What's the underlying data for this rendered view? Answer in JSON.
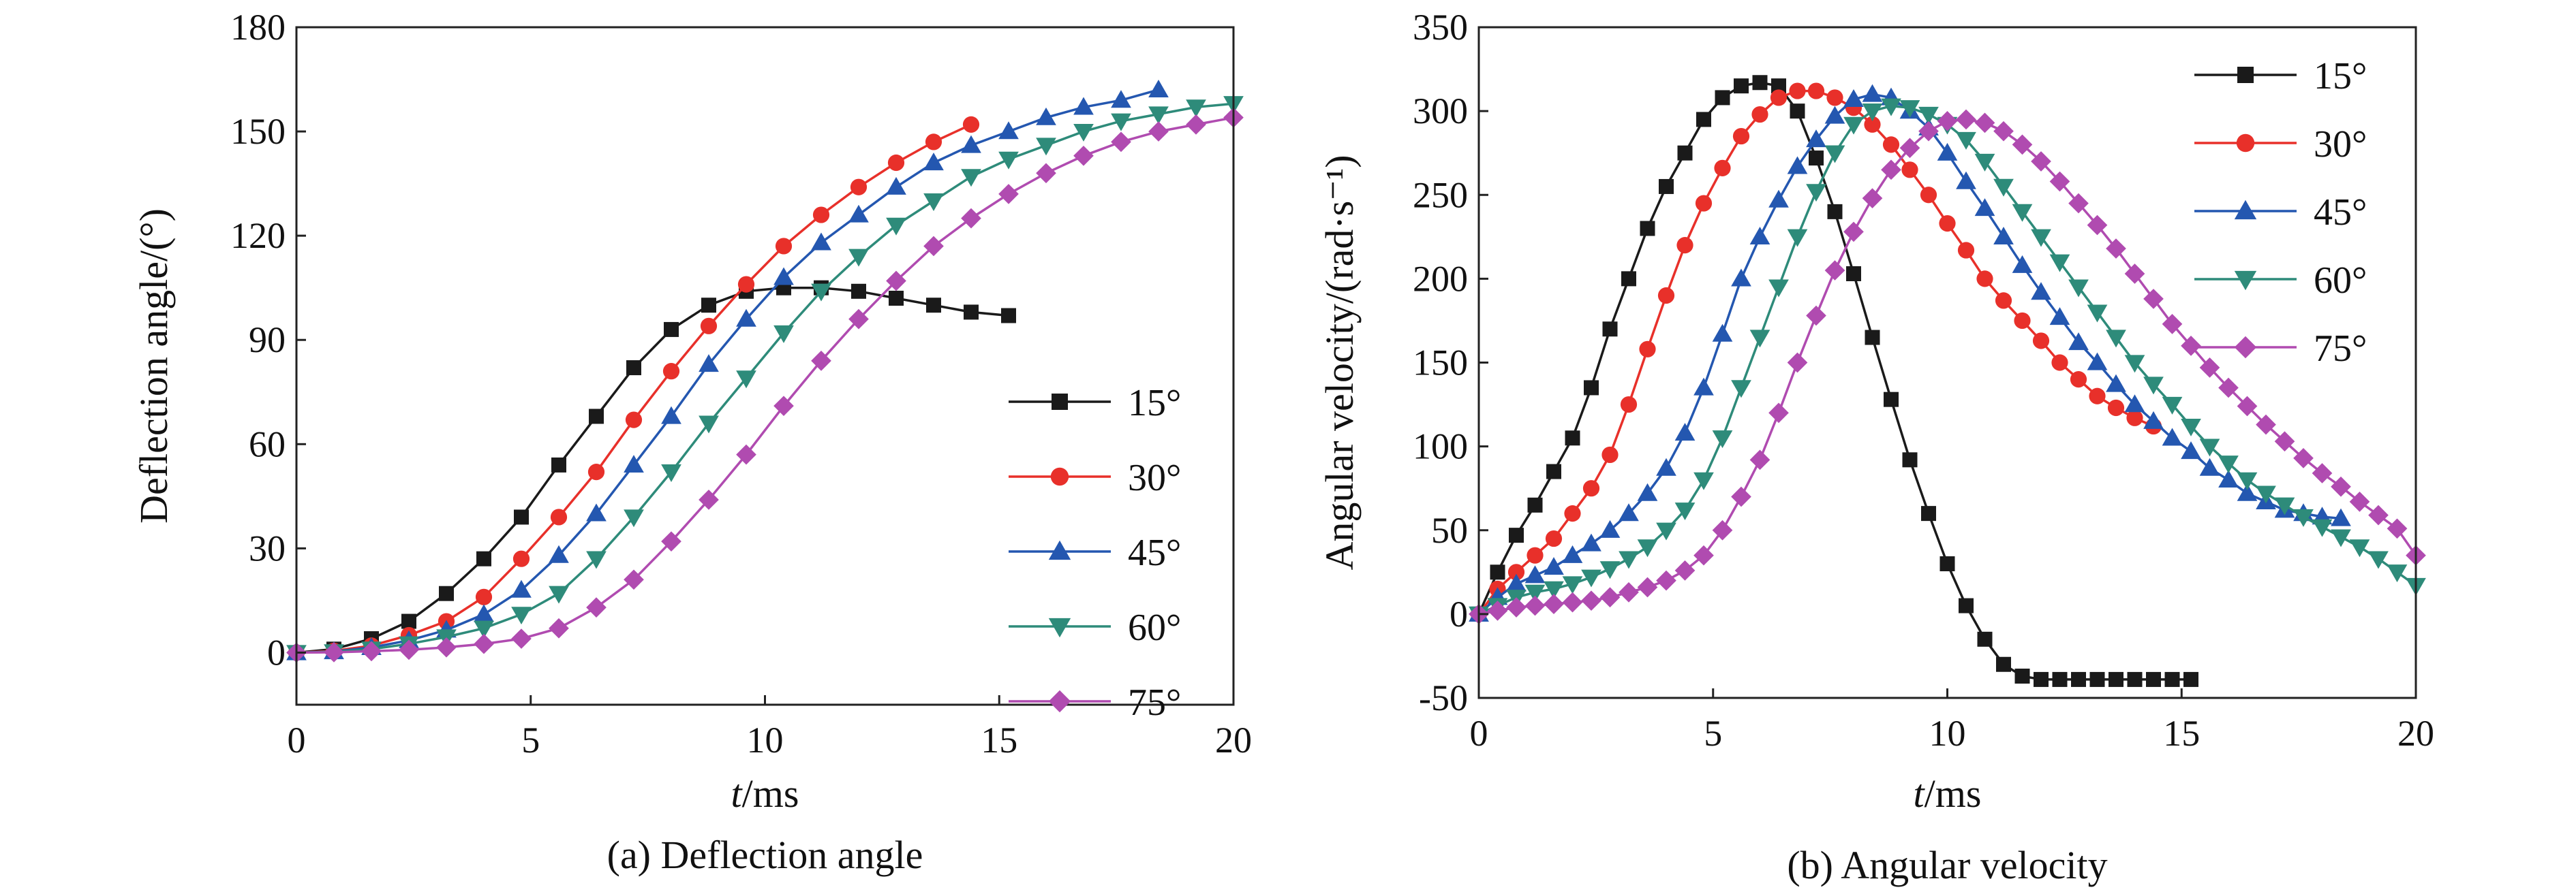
{
  "chart_data": [
    {
      "type": "line",
      "caption": "(a) Deflection angle",
      "ylabel": "Deflection angle/(°)",
      "xlabel_italic": "t",
      "xlabel_unit": "/ms",
      "xlim": [
        0,
        20
      ],
      "ylim": [
        -15,
        180
      ],
      "xticks": [
        0,
        5,
        10,
        15,
        20
      ],
      "yticks": [
        0,
        30,
        60,
        90,
        120,
        150,
        180
      ],
      "legend_position": "lower-right",
      "grid": false,
      "series": [
        {
          "name": "15°",
          "color": "#1a1a1a",
          "marker": "square",
          "x": [
            0,
            0.8,
            1.6,
            2.4,
            3.2,
            4.0,
            4.8,
            5.6,
            6.4,
            7.2,
            8.0,
            8.8,
            9.6,
            10.4,
            11.2,
            12.0,
            12.8,
            13.6,
            14.4,
            15.2
          ],
          "y": [
            0,
            1,
            4,
            9,
            17,
            27,
            39,
            54,
            68,
            82,
            93,
            100,
            104,
            105,
            105,
            104,
            102,
            100,
            98,
            97
          ]
        },
        {
          "name": "30°",
          "color": "#e8302a",
          "marker": "circle",
          "x": [
            0,
            0.8,
            1.6,
            2.4,
            3.2,
            4.0,
            4.8,
            5.6,
            6.4,
            7.2,
            8.0,
            8.8,
            9.6,
            10.4,
            11.2,
            12.0,
            12.8,
            13.6,
            14.4
          ],
          "y": [
            0,
            0.5,
            2,
            5,
            9,
            16,
            27,
            39,
            52,
            67,
            81,
            94,
            106,
            117,
            126,
            134,
            141,
            147,
            152
          ]
        },
        {
          "name": "45°",
          "color": "#2457b0",
          "marker": "triangle-up",
          "x": [
            0,
            0.8,
            1.6,
            2.4,
            3.2,
            4.0,
            4.8,
            5.6,
            6.4,
            7.2,
            8.0,
            8.8,
            9.6,
            10.4,
            11.2,
            12.0,
            12.8,
            13.6,
            14.4,
            15.2,
            16.0,
            16.8,
            17.6,
            18.4
          ],
          "y": [
            0,
            0.3,
            1.5,
            3.5,
            6.5,
            11,
            18,
            28,
            40,
            54,
            68,
            83,
            96,
            108,
            118,
            126,
            134,
            141,
            146,
            150,
            154,
            157,
            159,
            162
          ]
        },
        {
          "name": "60°",
          "color": "#2e8b7a",
          "marker": "triangle-down",
          "x": [
            0,
            0.8,
            1.6,
            2.4,
            3.2,
            4.0,
            4.8,
            5.6,
            6.4,
            7.2,
            8.0,
            8.8,
            9.6,
            10.4,
            11.2,
            12.0,
            12.8,
            13.6,
            14.4,
            15.2,
            16.0,
            16.8,
            17.6,
            18.4,
            19.2,
            20.0
          ],
          "y": [
            0,
            0.2,
            1,
            2.5,
            4.5,
            7,
            11,
            17,
            27,
            39,
            52,
            66,
            79,
            92,
            104,
            114,
            123,
            130,
            137,
            142,
            146,
            150,
            153,
            155,
            157,
            158
          ]
        },
        {
          "name": "75°",
          "color": "#b04bb0",
          "marker": "diamond",
          "x": [
            0,
            0.8,
            1.6,
            2.4,
            3.2,
            4.0,
            4.8,
            5.6,
            6.4,
            7.2,
            8.0,
            8.8,
            9.6,
            10.4,
            11.2,
            12.0,
            12.8,
            13.6,
            14.4,
            15.2,
            16.0,
            16.8,
            17.6,
            18.4,
            19.2,
            20.0
          ],
          "y": [
            0,
            0.1,
            0.4,
            0.8,
            1.5,
            2.5,
            4,
            7,
            13,
            21,
            32,
            44,
            57,
            71,
            84,
            96,
            107,
            117,
            125,
            132,
            138,
            143,
            147,
            150,
            152,
            154
          ]
        }
      ]
    },
    {
      "type": "line",
      "caption": "(b) Angular velocity",
      "ylabel": "Angular velocity/(rad·s⁻¹)",
      "xlabel_italic": "t",
      "xlabel_unit": "/ms",
      "xlim": [
        0,
        20
      ],
      "ylim": [
        -50,
        350
      ],
      "xticks": [
        0,
        5,
        10,
        15,
        20
      ],
      "yticks": [
        -50,
        0,
        50,
        100,
        150,
        200,
        250,
        300,
        350
      ],
      "legend_position": "upper-right",
      "grid": false,
      "series": [
        {
          "name": "15°",
          "color": "#1a1a1a",
          "marker": "square",
          "x": [
            0,
            0.4,
            0.8,
            1.2,
            1.6,
            2.0,
            2.4,
            2.8,
            3.2,
            3.6,
            4.0,
            4.4,
            4.8,
            5.2,
            5.6,
            6.0,
            6.4,
            6.8,
            7.2,
            7.6,
            8.0,
            8.4,
            8.8,
            9.2,
            9.6,
            10.0,
            10.4,
            10.8,
            11.2,
            11.6,
            12.0,
            12.4,
            12.8,
            13.2,
            13.6,
            14.0,
            14.4,
            14.8,
            15.2
          ],
          "y": [
            0,
            25,
            47,
            65,
            85,
            105,
            135,
            170,
            200,
            230,
            255,
            275,
            295,
            308,
            315,
            317,
            315,
            300,
            272,
            240,
            203,
            165,
            128,
            92,
            60,
            30,
            5,
            -15,
            -30,
            -37,
            -39,
            -39,
            -39,
            -39,
            -39,
            -39,
            -39,
            -39,
            -39
          ]
        },
        {
          "name": "30°",
          "color": "#e8302a",
          "marker": "circle",
          "x": [
            0,
            0.4,
            0.8,
            1.2,
            1.6,
            2.0,
            2.4,
            2.8,
            3.2,
            3.6,
            4.0,
            4.4,
            4.8,
            5.2,
            5.6,
            6.0,
            6.4,
            6.8,
            7.2,
            7.6,
            8.0,
            8.4,
            8.8,
            9.2,
            9.6,
            10.0,
            10.4,
            10.8,
            11.2,
            11.6,
            12.0,
            12.4,
            12.8,
            13.2,
            13.6,
            14.0,
            14.4
          ],
          "y": [
            0,
            15,
            25,
            35,
            45,
            60,
            75,
            95,
            125,
            158,
            190,
            220,
            245,
            266,
            285,
            298,
            308,
            312,
            312,
            308,
            302,
            292,
            280,
            265,
            250,
            233,
            217,
            200,
            187,
            175,
            163,
            150,
            140,
            130,
            123,
            117,
            112
          ]
        },
        {
          "name": "45°",
          "color": "#2457b0",
          "marker": "triangle-up",
          "x": [
            0,
            0.4,
            0.8,
            1.2,
            1.6,
            2.0,
            2.4,
            2.8,
            3.2,
            3.6,
            4.0,
            4.4,
            4.8,
            5.2,
            5.6,
            6.0,
            6.4,
            6.8,
            7.2,
            7.6,
            8.0,
            8.4,
            8.8,
            9.2,
            9.6,
            10.0,
            10.4,
            10.8,
            11.2,
            11.6,
            12.0,
            12.4,
            12.8,
            13.2,
            13.6,
            14.0,
            14.4,
            14.8,
            15.2,
            15.6,
            16.0,
            16.4,
            16.8,
            17.2,
            17.6,
            18.0,
            18.4
          ],
          "y": [
            0,
            10,
            18,
            23,
            28,
            35,
            42,
            50,
            60,
            72,
            87,
            108,
            135,
            167,
            200,
            225,
            247,
            267,
            283,
            297,
            307,
            310,
            308,
            300,
            290,
            275,
            258,
            242,
            225,
            208,
            192,
            177,
            162,
            150,
            137,
            125,
            115,
            105,
            97,
            87,
            80,
            72,
            67,
            62,
            60,
            58,
            57
          ]
        },
        {
          "name": "60°",
          "color": "#2e8b7a",
          "marker": "triangle-down",
          "x": [
            0,
            0.4,
            0.8,
            1.2,
            1.6,
            2.0,
            2.4,
            2.8,
            3.2,
            3.6,
            4.0,
            4.4,
            4.8,
            5.2,
            5.6,
            6.0,
            6.4,
            6.8,
            7.2,
            7.6,
            8.0,
            8.4,
            8.8,
            9.2,
            9.6,
            10.0,
            10.4,
            10.8,
            11.2,
            11.6,
            12.0,
            12.4,
            12.8,
            13.2,
            13.6,
            14.0,
            14.4,
            14.8,
            15.2,
            15.6,
            16.0,
            16.4,
            16.8,
            17.2,
            17.6,
            18.0,
            18.4,
            18.8,
            19.2,
            19.6,
            20.0
          ],
          "y": [
            0,
            5,
            10,
            13,
            15,
            18,
            22,
            27,
            33,
            40,
            50,
            62,
            80,
            105,
            135,
            165,
            195,
            225,
            252,
            275,
            292,
            300,
            303,
            302,
            298,
            292,
            283,
            270,
            255,
            240,
            225,
            210,
            195,
            180,
            165,
            150,
            137,
            125,
            112,
            100,
            90,
            80,
            72,
            65,
            58,
            52,
            46,
            40,
            33,
            25,
            17
          ]
        },
        {
          "name": "75°",
          "color": "#b04bb0",
          "marker": "diamond",
          "x": [
            0,
            0.4,
            0.8,
            1.2,
            1.6,
            2.0,
            2.4,
            2.8,
            3.2,
            3.6,
            4.0,
            4.4,
            4.8,
            5.2,
            5.6,
            6.0,
            6.4,
            6.8,
            7.2,
            7.6,
            8.0,
            8.4,
            8.8,
            9.2,
            9.6,
            10.0,
            10.4,
            10.8,
            11.2,
            11.6,
            12.0,
            12.4,
            12.8,
            13.2,
            13.6,
            14.0,
            14.4,
            14.8,
            15.2,
            15.6,
            16.0,
            16.4,
            16.8,
            17.2,
            17.6,
            18.0,
            18.4,
            18.8,
            19.2,
            19.6,
            20.0
          ],
          "y": [
            0,
            2,
            4,
            5,
            6,
            7,
            8,
            10,
            13,
            16,
            20,
            26,
            35,
            50,
            70,
            92,
            120,
            150,
            178,
            205,
            228,
            248,
            265,
            278,
            288,
            294,
            295,
            293,
            288,
            280,
            270,
            258,
            245,
            232,
            218,
            203,
            188,
            173,
            160,
            147,
            135,
            124,
            113,
            103,
            93,
            84,
            76,
            67,
            59,
            51,
            35
          ]
        }
      ]
    }
  ]
}
